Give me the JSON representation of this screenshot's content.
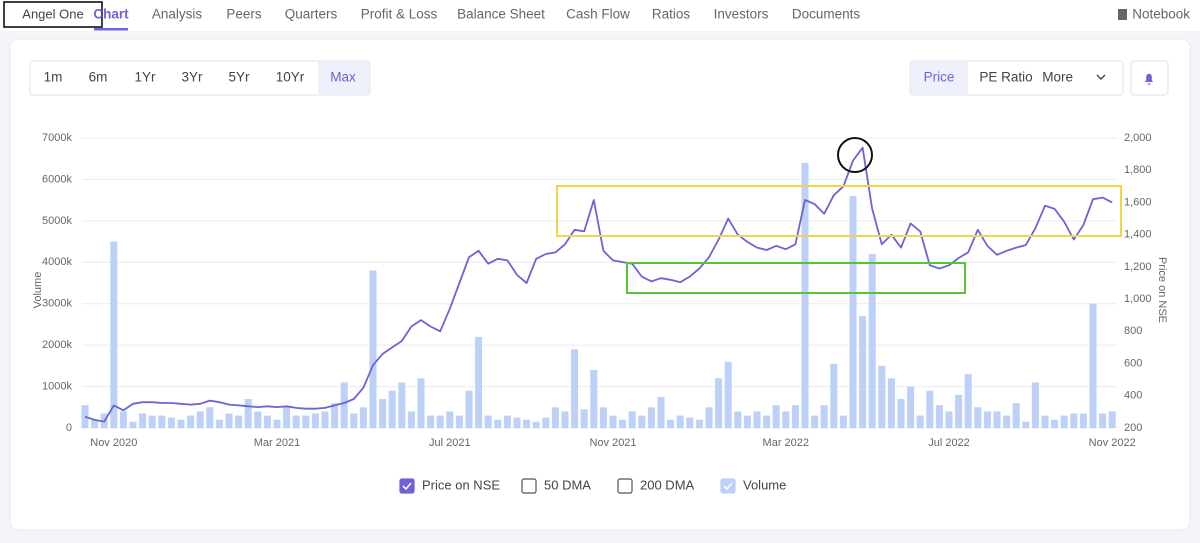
{
  "nav": {
    "company": "Angel One",
    "tabs": [
      "Chart",
      "Analysis",
      "Peers",
      "Quarters",
      "Profit & Loss",
      "Balance Sheet",
      "Cash Flow",
      "Ratios",
      "Investors",
      "Documents"
    ],
    "active_tab": 0,
    "notebook": "Notebook"
  },
  "range_buttons": [
    "1m",
    "6m",
    "1Yr",
    "3Yr",
    "5Yr",
    "10Yr",
    "Max"
  ],
  "active_range": 6,
  "metric_buttons": [
    "Price",
    "PE Ratio",
    "More"
  ],
  "active_metric": 0,
  "chart_data": {
    "type": "bar",
    "ylabel": "Volume",
    "y2label": "Price on NSE",
    "categories": [
      null,
      null,
      null,
      "Nov 2020",
      null,
      null,
      null,
      null,
      null,
      null,
      null,
      null,
      null,
      null,
      null,
      null,
      null,
      null,
      null,
      null,
      "Mar 2021",
      null,
      null,
      null,
      null,
      null,
      null,
      null,
      null,
      null,
      null,
      null,
      null,
      null,
      null,
      null,
      null,
      null,
      "Jul 2021",
      null,
      null,
      null,
      null,
      null,
      null,
      null,
      null,
      null,
      null,
      null,
      null,
      null,
      null,
      null,
      null,
      "Nov 2021",
      null,
      null,
      null,
      null,
      null,
      null,
      null,
      null,
      null,
      null,
      null,
      null,
      null,
      null,
      null,
      null,
      null,
      "Mar 2022",
      null,
      null,
      null,
      null,
      null,
      null,
      null,
      null,
      null,
      null,
      null,
      null,
      null,
      null,
      null,
      null,
      "Jul 2022",
      null,
      null,
      null,
      null,
      null,
      null,
      null,
      null,
      null,
      null,
      null,
      null,
      null,
      null,
      null,
      null,
      "Nov 2022"
    ],
    "series": [
      {
        "name": "Price on NSE",
        "type": "line",
        "axis": "y2",
        "color": "#6c63d9",
        "checked": true,
        "values": [
          270,
          250,
          240,
          340,
          310,
          350,
          360,
          360,
          355,
          355,
          350,
          345,
          350,
          370,
          360,
          345,
          340,
          335,
          330,
          335,
          330,
          335,
          325,
          320,
          320,
          325,
          340,
          355,
          380,
          450,
          590,
          660,
          700,
          740,
          830,
          870,
          830,
          800,
          940,
          1100,
          1260,
          1300,
          1220,
          1250,
          1240,
          1150,
          1100,
          1250,
          1280,
          1290,
          1340,
          1430,
          1420,
          1615,
          1300,
          1240,
          1230,
          1220,
          1140,
          1110,
          1130,
          1120,
          1105,
          1140,
          1190,
          1260,
          1370,
          1500,
          1400,
          1355,
          1320,
          1305,
          1330,
          1310,
          1340,
          1615,
          1590,
          1530,
          1645,
          1700,
          1860,
          1940,
          1560,
          1340,
          1400,
          1320,
          1470,
          1420,
          1210,
          1190,
          1210,
          1255,
          1290,
          1430,
          1330,
          1275,
          1300,
          1320,
          1335,
          1440,
          1580,
          1560,
          1480,
          1370,
          1460,
          1620,
          1630,
          1600
        ]
      },
      {
        "name": "Volume",
        "type": "bar",
        "axis": "y",
        "color": "#bcd0f8",
        "checked": true,
        "values": [
          550,
          200,
          350,
          4500,
          400,
          150,
          350,
          300,
          300,
          250,
          200,
          300,
          400,
          500,
          200,
          350,
          300,
          700,
          400,
          300,
          200,
          500,
          300,
          300,
          350,
          400,
          600,
          1100,
          350,
          500,
          3800,
          700,
          900,
          1100,
          400,
          1200,
          300,
          300,
          400,
          300,
          900,
          2200,
          300,
          200,
          300,
          250,
          200,
          150,
          250,
          500,
          400,
          1900,
          450,
          1400,
          500,
          300,
          200,
          400,
          300,
          500,
          750,
          200,
          300,
          250,
          200,
          500,
          1200,
          1600,
          400,
          300,
          400,
          300,
          550,
          400,
          550,
          6400,
          300,
          550,
          1550,
          300,
          5600,
          2700,
          4200,
          1500,
          1200,
          700,
          1000,
          300,
          900,
          550,
          400,
          800,
          1300,
          500,
          400,
          400,
          300,
          600,
          150,
          1100,
          300,
          200,
          300,
          350,
          350,
          3000,
          350,
          400
        ]
      }
    ],
    "hidden_series": [
      {
        "name": "50 DMA",
        "checked": false
      },
      {
        "name": "200 DMA",
        "checked": false
      }
    ],
    "ylim": [
      0,
      7000
    ],
    "yticks": [
      0,
      {
        "value": 1000,
        "label": "1000k"
      },
      {
        "value": 2000,
        "label": "2000k"
      },
      {
        "value": 3000,
        "label": "3000k"
      },
      {
        "value": 4000,
        "label": "4000k"
      },
      {
        "value": 5000,
        "label": "5000k"
      },
      {
        "value": 6000,
        "label": "6000k"
      },
      {
        "value": 7000,
        "label": "7000k"
      }
    ],
    "y2lim": [
      200,
      2000
    ],
    "y2ticks": [
      200,
      400,
      600,
      800,
      {
        "value": 1000,
        "label": "1,000"
      },
      {
        "value": 1200,
        "label": "1,200"
      },
      {
        "value": 1400,
        "label": "1,400"
      },
      {
        "value": 1600,
        "label": "1,600"
      },
      {
        "value": 1800,
        "label": "1,800"
      },
      {
        "value": 2000,
        "label": "2,000"
      }
    ],
    "grid": true
  }
}
